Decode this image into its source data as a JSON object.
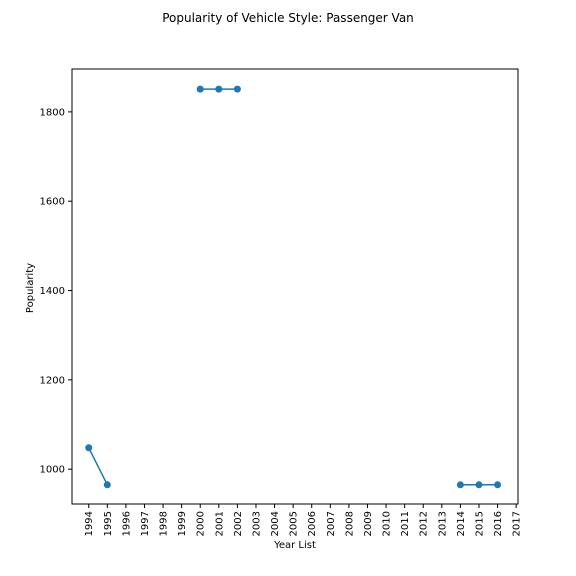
{
  "chart_data": {
    "type": "line",
    "title": "Popularity of Vehicle Style: Passenger Van",
    "xlabel": "Year List",
    "ylabel": "Popularity",
    "x_ticks": [
      "1994",
      "1995",
      "1996",
      "1997",
      "1998",
      "1999",
      "2000",
      "2001",
      "2002",
      "2003",
      "2004",
      "2005",
      "2006",
      "2007",
      "2008",
      "2009",
      "2010",
      "2011",
      "2012",
      "2013",
      "2014",
      "2015",
      "2016",
      "2017"
    ],
    "y_ticks": [
      1000,
      1200,
      1400,
      1600,
      1800
    ],
    "xlim": [
      1993.1,
      2017.1
    ],
    "ylim": [
      922,
      1896
    ],
    "grid": false,
    "legend": false,
    "series_color": "#1f77b4",
    "segments": [
      [
        [
          1994,
          1048
        ],
        [
          1995,
          965
        ]
      ],
      [
        [
          2000,
          1851
        ],
        [
          2001,
          1851
        ],
        [
          2002,
          1851
        ]
      ],
      [
        [
          2014,
          965
        ],
        [
          2015,
          965
        ],
        [
          2016,
          965
        ]
      ]
    ]
  }
}
